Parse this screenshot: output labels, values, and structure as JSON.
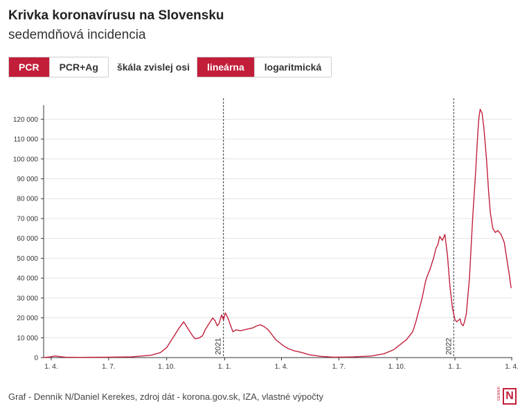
{
  "header": {
    "title": "Krivka koronavírusu na Slovensku",
    "subtitle": "sedemdňová incidencia"
  },
  "controls": {
    "test_options": [
      {
        "label": "PCR",
        "active": true
      },
      {
        "label": "PCR+Ag",
        "active": false
      }
    ],
    "scale_label": "škála zvislej osi",
    "scale_options": [
      {
        "label": "lineárna",
        "active": true
      },
      {
        "label": "logaritmická",
        "active": false
      }
    ]
  },
  "chart_data": {
    "type": "line",
    "title": "Krivka koronavírusu na Slovensku",
    "subtitle": "sedemdňová incidencia",
    "xlabel": "",
    "ylabel": "",
    "ylim": [
      0,
      125000
    ],
    "yticks": [
      0,
      10000,
      20000,
      30000,
      40000,
      50000,
      60000,
      70000,
      80000,
      90000,
      100000,
      110000,
      120000
    ],
    "ytick_labels": [
      "0",
      "10 000",
      "20 000",
      "30 000",
      "40 000",
      "50 000",
      "60 000",
      "70 000",
      "80 000",
      "90 000",
      "100 000",
      "110 000",
      "120 000"
    ],
    "x_unit": "days since 2020-03-20",
    "xlim": [
      0,
      743
    ],
    "xticks": [
      {
        "x": 12,
        "label": "1. 4."
      },
      {
        "x": 103,
        "label": "1. 7."
      },
      {
        "x": 195,
        "label": "1. 10."
      },
      {
        "x": 287,
        "label": "1. 1."
      },
      {
        "x": 377,
        "label": "1. 4."
      },
      {
        "x": 468,
        "label": "1. 7."
      },
      {
        "x": 560,
        "label": "1. 10."
      },
      {
        "x": 652,
        "label": "1. 1."
      },
      {
        "x": 742,
        "label": "1. 4."
      }
    ],
    "annotations": [
      {
        "x": 285,
        "label": "2021"
      },
      {
        "x": 650,
        "label": "2022"
      }
    ],
    "series": [
      {
        "name": "PCR",
        "color": "#c21e3a",
        "x": [
          0,
          10,
          18,
          25,
          35,
          60,
          100,
          140,
          170,
          185,
          195,
          205,
          215,
          222,
          227,
          232,
          236,
          240,
          246,
          252,
          256,
          262,
          268,
          272,
          275,
          278,
          282,
          285,
          288,
          292,
          296,
          300,
          305,
          312,
          318,
          325,
          332,
          338,
          344,
          350,
          356,
          362,
          368,
          374,
          380,
          388,
          396,
          410,
          420,
          440,
          460,
          490,
          520,
          540,
          555,
          565,
          575,
          585,
          590,
          595,
          600,
          605,
          608,
          612,
          618,
          622,
          625,
          628,
          632,
          636,
          640,
          644,
          648,
          652,
          655,
          660,
          662,
          665,
          667,
          670,
          675,
          680,
          685,
          688,
          690,
          692,
          695,
          698,
          702,
          705,
          708,
          712,
          716,
          720,
          725,
          730,
          735,
          738,
          741
        ],
        "values": [
          0,
          300,
          800,
          500,
          200,
          100,
          200,
          400,
          1200,
          2500,
          5000,
          10000,
          15000,
          18000,
          15500,
          13000,
          11000,
          9500,
          9800,
          11000,
          14000,
          17000,
          20000,
          18500,
          16000,
          17000,
          21500,
          19000,
          22500,
          20000,
          16500,
          13000,
          14000,
          13500,
          14000,
          14500,
          15000,
          16000,
          16500,
          15500,
          14000,
          11500,
          9000,
          7500,
          6000,
          4500,
          3500,
          2500,
          1500,
          600,
          200,
          300,
          800,
          2000,
          4000,
          6500,
          9000,
          13000,
          18000,
          24000,
          30000,
          38000,
          41000,
          44000,
          50000,
          55000,
          57000,
          61000,
          59000,
          62000,
          52000,
          36000,
          25000,
          19000,
          18000,
          19500,
          17000,
          16000,
          18000,
          22000,
          40000,
          70000,
          95000,
          112000,
          121000,
          125000,
          123000,
          115000,
          100000,
          85000,
          73000,
          65000,
          63000,
          64000,
          62000,
          58000,
          48000,
          42000,
          35000
        ]
      }
    ]
  },
  "footer": {
    "source": "Graf - Denník N/Daniel Kerekes, zdroj dát - korona.gov.sk, IZA, vlastné výpočty"
  },
  "logo": {
    "letter": "N",
    "text": "DENNÍK"
  },
  "colors": {
    "accent": "#c21e3a",
    "grid": "#e4e4e4",
    "axis": "#333333"
  }
}
